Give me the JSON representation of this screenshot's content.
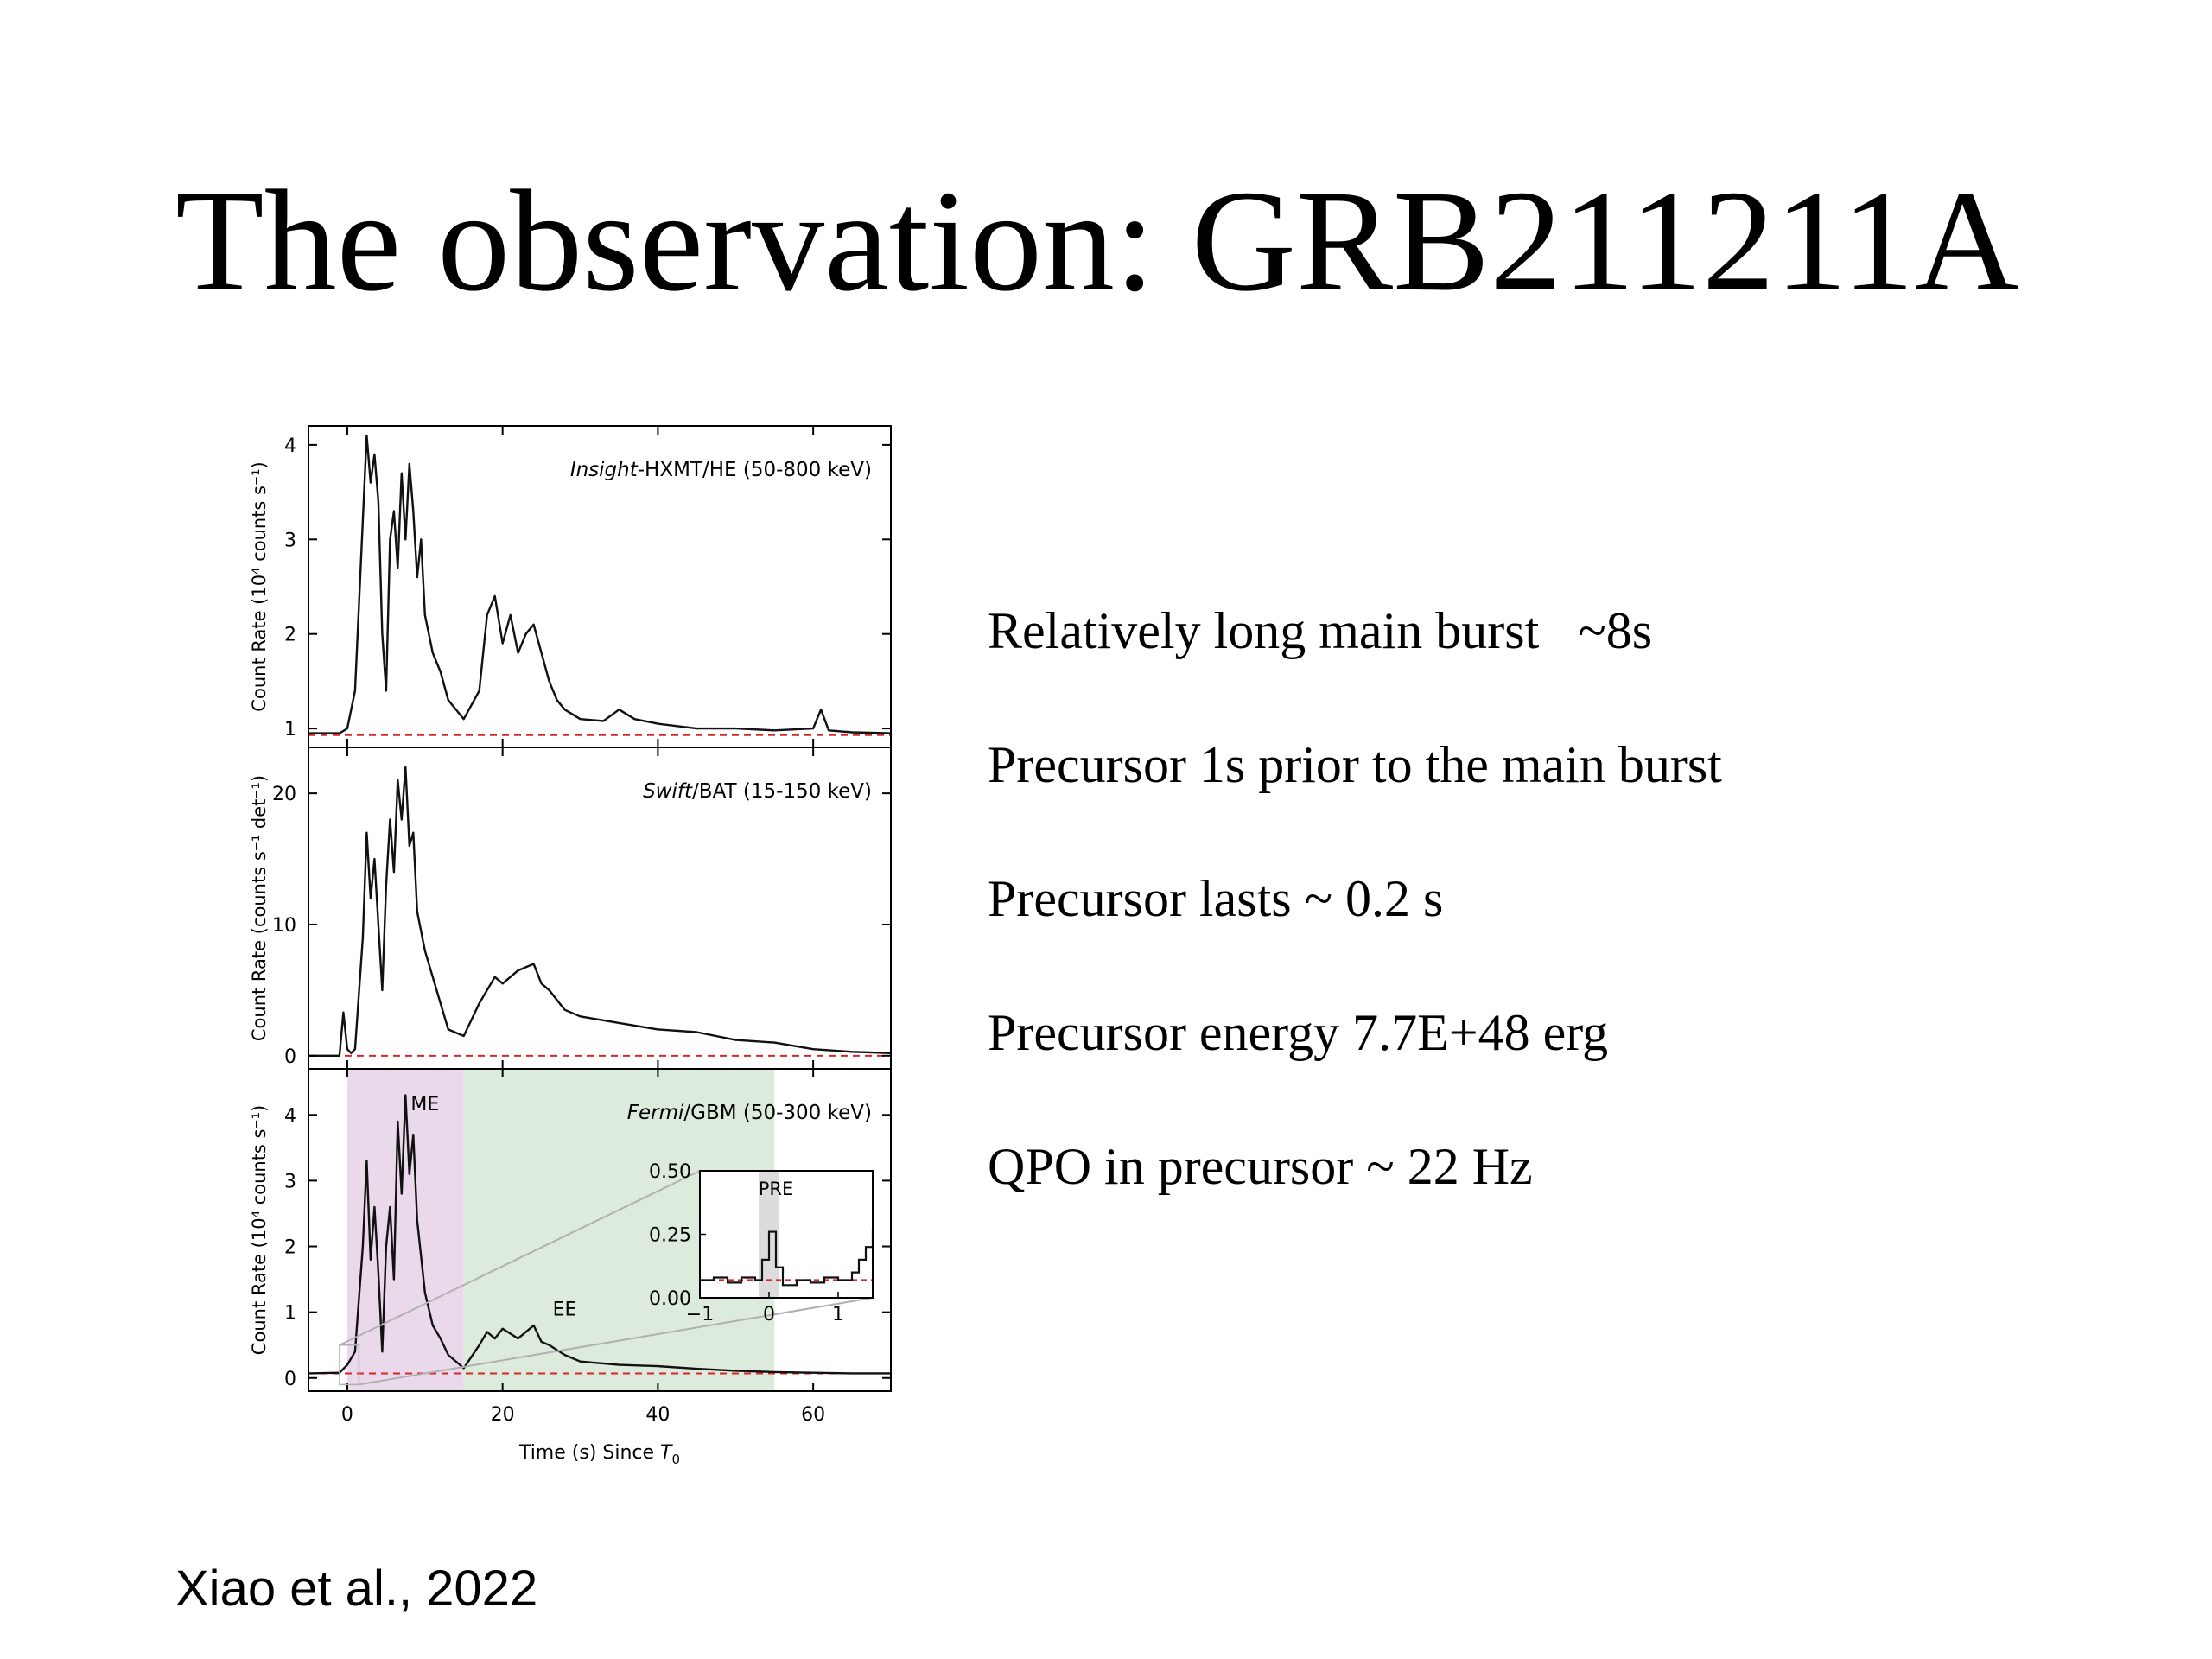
{
  "slide": {
    "title": "The observation: GRB211211A",
    "bullets": [
      "Relatively long main burst   ~8s",
      "Precursor 1s prior to the main burst",
      "Precursor lasts ~ 0.2 s",
      "Precursor energy 7.7E+48 erg",
      "QPO in precursor ~ 22 Hz"
    ],
    "citation": "Xiao et al., 2022"
  },
  "colors": {
    "curve": "#111111",
    "background_level": "#d62728",
    "me_shade": "#ead9eb",
    "ee_shade": "#dcebdc"
  },
  "chart_data": [
    {
      "type": "line",
      "panel": "top",
      "instrument_label_italic": "Insight",
      "instrument_label_rest": "-HXMT/HE (50-800 keV)",
      "ylabel": "Count Rate (10⁴ counts s⁻¹)",
      "xlim": [
        -5,
        70
      ],
      "ylim": [
        0.8,
        4.2
      ],
      "yticks": [
        1,
        2,
        3,
        4
      ],
      "background_level": 0.93,
      "x": [
        -5,
        -1,
        0,
        1,
        2,
        2.5,
        3,
        3.5,
        4,
        4.5,
        5,
        5.5,
        6,
        6.5,
        7,
        7.5,
        8,
        8.5,
        9,
        9.5,
        10,
        11,
        12,
        13,
        15,
        17,
        18,
        19,
        20,
        21,
        22,
        23,
        24,
        25,
        26,
        27,
        28,
        30,
        33,
        35,
        37,
        40,
        45,
        50,
        55,
        60,
        61,
        62,
        65,
        70
      ],
      "y": [
        0.95,
        0.95,
        1.0,
        1.4,
        3.2,
        4.1,
        3.6,
        3.9,
        3.4,
        2.0,
        1.4,
        3.0,
        3.3,
        2.7,
        3.7,
        3.0,
        3.8,
        3.3,
        2.6,
        3.0,
        2.2,
        1.8,
        1.6,
        1.3,
        1.1,
        1.4,
        2.2,
        2.4,
        1.9,
        2.2,
        1.8,
        2.0,
        2.1,
        1.8,
        1.5,
        1.3,
        1.2,
        1.1,
        1.08,
        1.2,
        1.1,
        1.05,
        1.0,
        1.0,
        0.98,
        1.0,
        1.2,
        0.98,
        0.96,
        0.95
      ]
    },
    {
      "type": "line",
      "panel": "middle",
      "instrument_label_italic": "Swift",
      "instrument_label_rest": "/BAT (15-150 keV)",
      "ylabel": "Count Rate (counts s⁻¹ det⁻¹)",
      "xlim": [
        -5,
        70
      ],
      "ylim": [
        -1,
        23.5
      ],
      "yticks": [
        0,
        10,
        20
      ],
      "background_level": 0,
      "x": [
        -5,
        -1,
        -0.5,
        0,
        0.5,
        1,
        2,
        2.5,
        3,
        3.5,
        4,
        4.5,
        5,
        5.5,
        6,
        6.5,
        7,
        7.5,
        8,
        8.5,
        9,
        10,
        11,
        12,
        13,
        15,
        17,
        19,
        20,
        22,
        24,
        25,
        26,
        28,
        30,
        35,
        40,
        45,
        50,
        55,
        60,
        65,
        70
      ],
      "y": [
        0,
        0,
        3.3,
        0.5,
        0.2,
        0.5,
        9,
        17,
        12,
        15,
        10,
        5,
        13,
        18,
        14,
        21,
        18,
        22,
        16,
        17,
        11,
        8,
        6,
        4,
        2,
        1.5,
        4,
        6,
        5.5,
        6.5,
        7,
        5.5,
        5,
        3.5,
        3,
        2.5,
        2,
        1.8,
        1.2,
        1,
        0.5,
        0.3,
        0.2
      ]
    },
    {
      "type": "line",
      "panel": "bottom",
      "instrument_label_italic": "Fermi",
      "instrument_label_rest": "/GBM (50-300 keV)",
      "ylabel": "Count Rate (10⁴ counts s⁻¹)",
      "xlabel_prefix": "Time (s) Since ",
      "xlabel_italic": "T",
      "xlabel_sub": "0",
      "xlim": [
        -5,
        70
      ],
      "ylim": [
        -0.2,
        4.7
      ],
      "xticks": [
        0,
        20,
        40,
        60
      ],
      "yticks": [
        0,
        1,
        2,
        3,
        4
      ],
      "background_level": 0.07,
      "regions": [
        {
          "label": "ME",
          "x0": 0,
          "x1": 15
        },
        {
          "label": "EE",
          "x0": 15,
          "x1": 55
        }
      ],
      "x": [
        -5,
        -1,
        0,
        1,
        2,
        2.5,
        3,
        3.5,
        4,
        4.5,
        5,
        5.5,
        6,
        6.5,
        7,
        7.5,
        8,
        8.5,
        9,
        10,
        11,
        12,
        13,
        15,
        17,
        18,
        19,
        20,
        22,
        24,
        25,
        26,
        28,
        30,
        35,
        40,
        45,
        50,
        55,
        60,
        65,
        70
      ],
      "y": [
        0.07,
        0.08,
        0.2,
        0.4,
        2.0,
        3.3,
        1.8,
        2.6,
        1.6,
        0.4,
        2.0,
        2.6,
        1.5,
        3.9,
        2.8,
        4.3,
        3.1,
        3.7,
        2.4,
        1.3,
        0.8,
        0.6,
        0.35,
        0.15,
        0.5,
        0.7,
        0.6,
        0.75,
        0.6,
        0.8,
        0.55,
        0.5,
        0.35,
        0.25,
        0.2,
        0.18,
        0.14,
        0.11,
        0.09,
        0.08,
        0.07,
        0.07
      ],
      "inset": {
        "label": "PRE",
        "xlim": [
          -1,
          1.5
        ],
        "ylim": [
          0,
          0.5
        ],
        "xticks": [
          -1,
          0,
          1
        ],
        "yticks": [
          0.0,
          0.25,
          0.5
        ],
        "ytick_labels": [
          "0.00",
          "0.25",
          "0.50"
        ],
        "shade_x": [
          -0.15,
          0.15
        ],
        "background_level": 0.07,
        "x": [
          -1,
          -0.8,
          -0.6,
          -0.4,
          -0.2,
          -0.1,
          0,
          0.1,
          0.2,
          0.4,
          0.6,
          0.8,
          1.0,
          1.2,
          1.3,
          1.4,
          1.5
        ],
        "y": [
          0.07,
          0.08,
          0.06,
          0.08,
          0.07,
          0.15,
          0.26,
          0.12,
          0.05,
          0.07,
          0.06,
          0.08,
          0.07,
          0.1,
          0.15,
          0.2,
          0.27
        ]
      }
    }
  ]
}
